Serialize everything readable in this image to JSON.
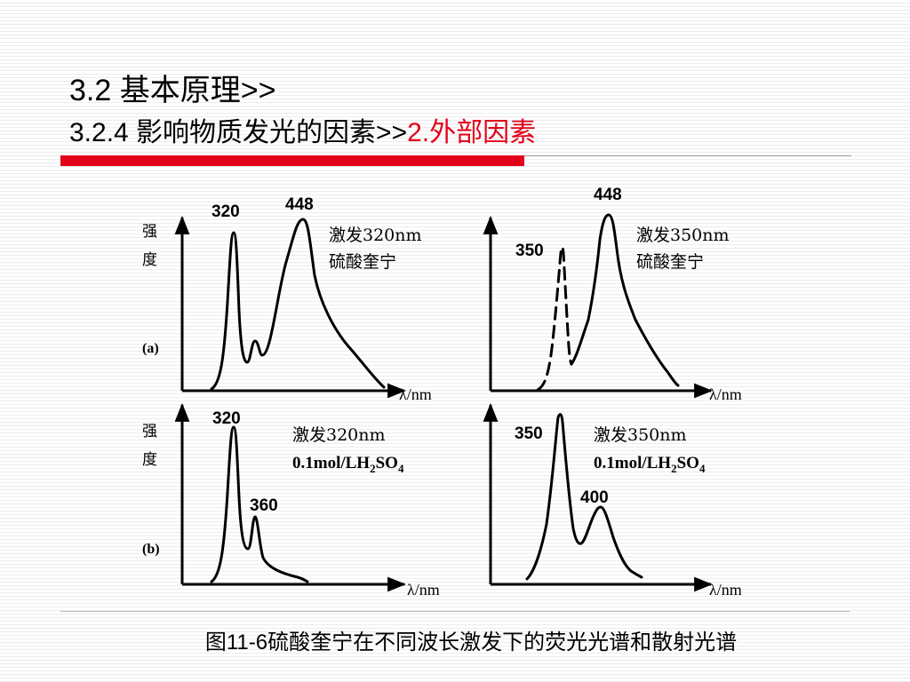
{
  "title": {
    "line1": "3.2 基本原理>>",
    "line2_prefix": "3.2.4 影响物质发光的因素>>",
    "line2_highlight": "2.外部因素"
  },
  "colors": {
    "accent": "#e2001a",
    "ink": "#000000"
  },
  "figure": {
    "ylabel_chars": [
      "强",
      "度"
    ],
    "xlabel_lambda": "λ",
    "xlabel_unit": "/nm",
    "row_labels": [
      "(a)",
      "(b)"
    ],
    "panels": {
      "a1": {
        "peaks": [
          "320",
          "448"
        ],
        "note1": "激发320nm",
        "note2": "硫酸奎宁"
      },
      "a2": {
        "peaks": [
          "350",
          "448"
        ],
        "note1": "激发350nm",
        "note2": "硫酸奎宁"
      },
      "b1": {
        "peaks": [
          "320",
          "360"
        ],
        "note1": "激发320nm",
        "note2_parts": [
          "0.1mol/LH",
          "2",
          "SO",
          "4"
        ]
      },
      "b2": {
        "peaks": [
          "350",
          "400"
        ],
        "note1": "激发350nm",
        "note2_parts": [
          "0.1mol/LH",
          "2",
          "SO",
          "4"
        ]
      }
    },
    "caption": "图11-6硫酸奎宁在不同波长激发下的荧光光谱和散射光谱"
  }
}
